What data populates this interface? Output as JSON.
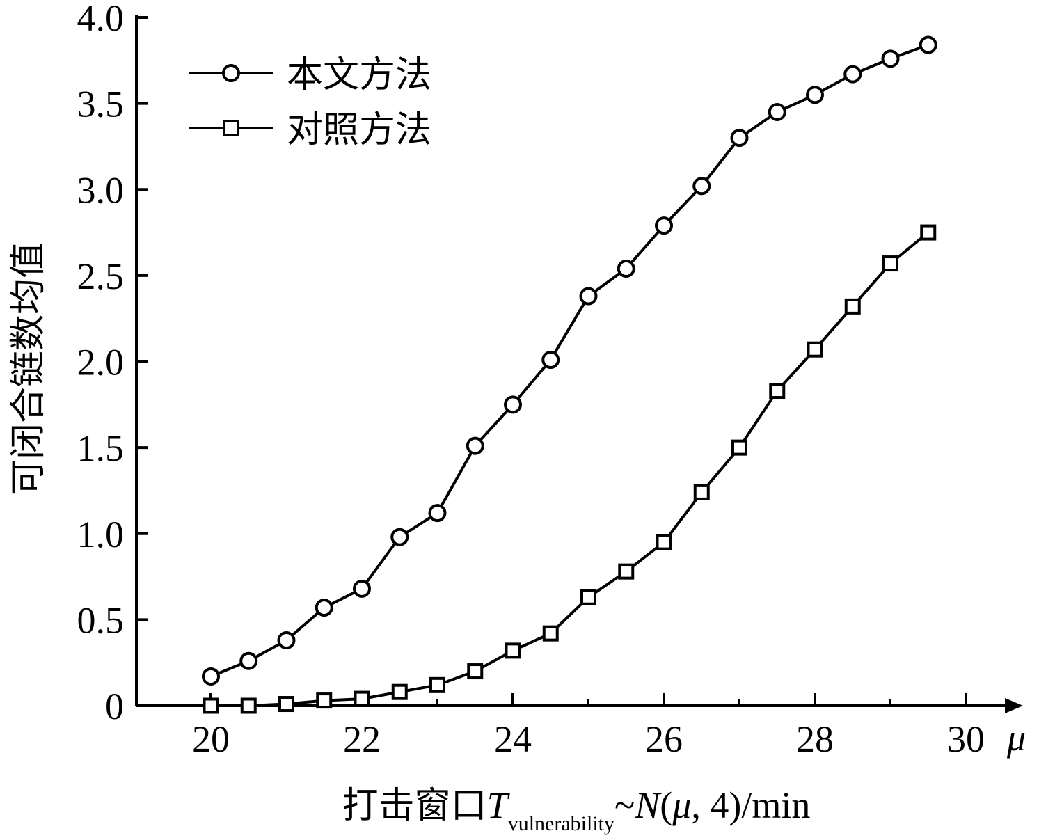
{
  "chart_data": {
    "type": "line",
    "xlabel": {
      "prefix": "打击窗口",
      "T": "T",
      "subscript": "vulnerability",
      "tilde": "~",
      "N": "N",
      "open": "(",
      "mu": "μ",
      "rest": ", 4)/min"
    },
    "ylabel": "可闭合链数均值",
    "x_axis_symbol": "μ",
    "xlim": [
      19,
      30.8
    ],
    "ylim": [
      0,
      4.0
    ],
    "xticks": [
      20,
      22,
      24,
      26,
      28,
      30
    ],
    "yticks": [
      0,
      0.5,
      1.0,
      1.5,
      2.0,
      2.5,
      3.0,
      3.5,
      4.0
    ],
    "yticklabels": [
      "0",
      "0.5",
      "1.0",
      "1.5",
      "2.0",
      "2.5",
      "3.0",
      "3.5",
      "4.0"
    ],
    "x": [
      20,
      20.5,
      21,
      21.5,
      22,
      22.5,
      23,
      23.5,
      24,
      24.5,
      25,
      25.5,
      26,
      26.5,
      27,
      27.5,
      28,
      28.5,
      29,
      29.5
    ],
    "series": [
      {
        "name": "本文方法",
        "marker": "circle",
        "values": [
          0.17,
          0.26,
          0.38,
          0.57,
          0.68,
          0.98,
          1.12,
          1.51,
          1.75,
          2.01,
          2.38,
          2.54,
          2.79,
          3.02,
          3.3,
          3.45,
          3.55,
          3.67,
          3.76,
          3.84
        ]
      },
      {
        "name": "对照方法",
        "marker": "square",
        "values": [
          0.0,
          0.0,
          0.01,
          0.03,
          0.04,
          0.08,
          0.12,
          0.2,
          0.32,
          0.42,
          0.63,
          0.78,
          0.95,
          1.24,
          1.5,
          1.83,
          2.07,
          2.32,
          2.57,
          2.75
        ]
      }
    ],
    "legend_position": "top-left",
    "grid": false,
    "colors": {
      "line": "#000000",
      "marker_fill": "#ffffff"
    }
  }
}
